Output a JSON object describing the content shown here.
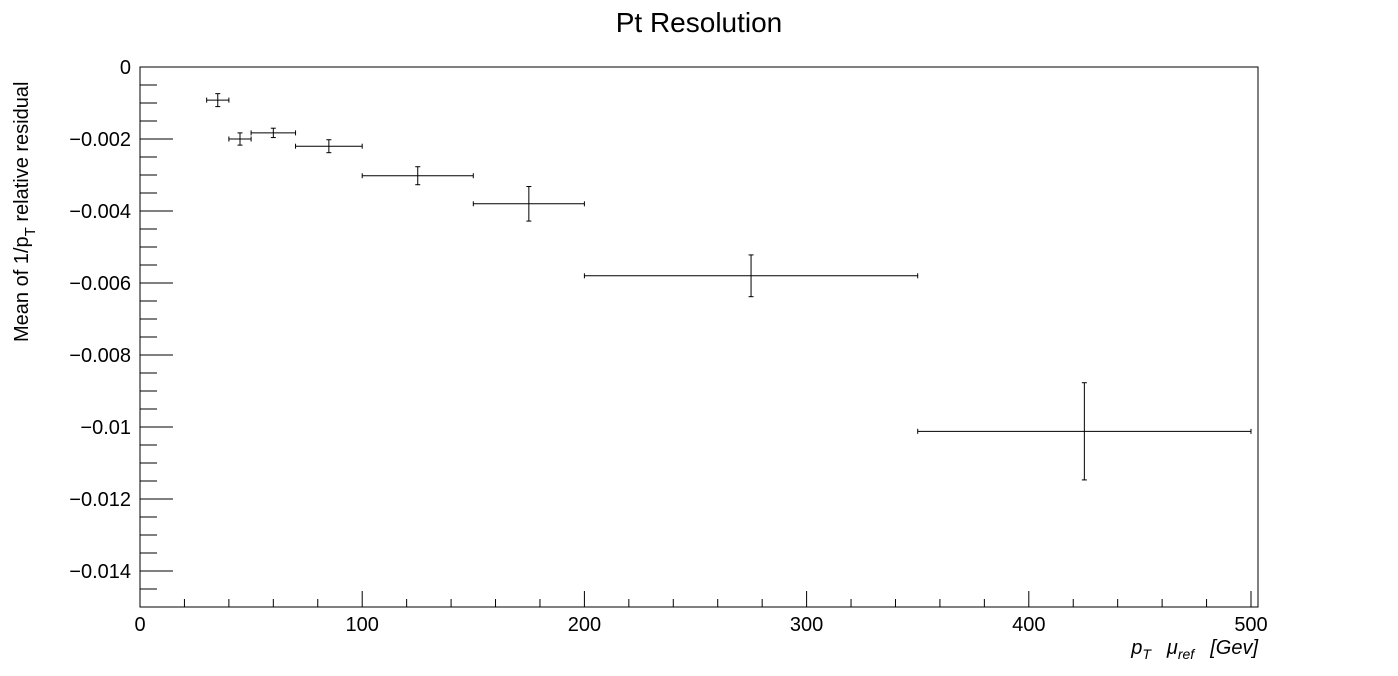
{
  "chart_data": {
    "type": "scatter",
    "title": "Pt Resolution",
    "xlabel": {
      "p": "p",
      "p_sub": "T",
      "mu": "μ",
      "mu_sub": "ref",
      "unit": "[Gev]"
    },
    "ylabel": {
      "pre": "Mean of 1/p",
      "sub": "T",
      "post": " relative residual"
    },
    "xlim": [
      0,
      505
    ],
    "ylim": [
      -0.015,
      0
    ],
    "x_ticks": [
      0,
      100,
      200,
      300,
      400,
      500
    ],
    "x_tick_labels": [
      "0",
      "100",
      "200",
      "300",
      "400",
      "500"
    ],
    "y_ticks": [
      0,
      -0.002,
      -0.004,
      -0.006,
      -0.008,
      -0.01,
      -0.012,
      -0.014
    ],
    "y_tick_labels": [
      "0",
      "−0.002",
      "−0.004",
      "−0.006",
      "−0.008",
      "−0.01",
      "−0.012",
      "−0.014"
    ],
    "grid": false,
    "series": [
      {
        "points": [
          {
            "x": 35,
            "xerr": 5,
            "y": -0.00092,
            "yerr": 0.00018
          },
          {
            "x": 45,
            "xerr": 5,
            "y": -0.002,
            "yerr": 0.00017
          },
          {
            "x": 60,
            "xerr": 10,
            "y": -0.00183,
            "yerr": 0.00013
          },
          {
            "x": 85,
            "xerr": 15,
            "y": -0.0022,
            "yerr": 0.00018
          },
          {
            "x": 125,
            "xerr": 25,
            "y": -0.00302,
            "yerr": 0.00025
          },
          {
            "x": 175,
            "xerr": 25,
            "y": -0.0038,
            "yerr": 0.00048
          },
          {
            "x": 275,
            "xerr": 75,
            "y": -0.0058,
            "yerr": 0.00058
          },
          {
            "x": 425,
            "xerr": 75,
            "y": -0.01012,
            "yerr": 0.00135
          }
        ]
      }
    ]
  }
}
